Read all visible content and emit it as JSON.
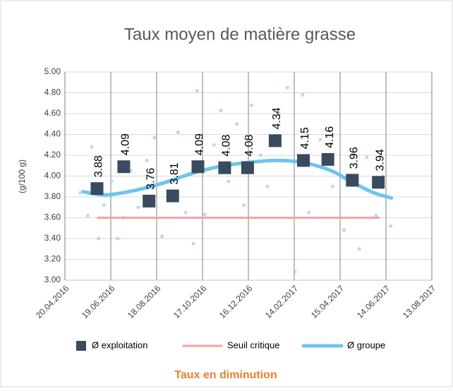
{
  "chart_data": {
    "type": "scatter",
    "title": "Taux moyen de matière grasse",
    "subtitle": "Taux en diminution",
    "y_label": "(g/100 g)",
    "xlim": [
      "2016-04-20",
      "2017-08-13"
    ],
    "xticks": [
      {
        "value": "2016-04-20",
        "label": "20.04.2016"
      },
      {
        "value": "2016-06-19",
        "label": "19.06.2016"
      },
      {
        "value": "2016-08-18",
        "label": "18.08.2016"
      },
      {
        "value": "2016-10-17",
        "label": "17.10.2016"
      },
      {
        "value": "2016-12-16",
        "label": "16.12.2016"
      },
      {
        "value": "2017-02-14",
        "label": "14.02.2017"
      },
      {
        "value": "2017-04-15",
        "label": "15.04.2017"
      },
      {
        "value": "2017-06-14",
        "label": "14.06.2017"
      },
      {
        "value": "2017-08-13",
        "label": "13.08.2017"
      }
    ],
    "ylim": [
      3.0,
      5.0
    ],
    "yticks": [
      {
        "value": 3.0,
        "label": "3.00"
      },
      {
        "value": 3.2,
        "label": "3.20"
      },
      {
        "value": 3.4,
        "label": "3.40"
      },
      {
        "value": 3.6,
        "label": "3.60"
      },
      {
        "value": 3.8,
        "label": "3.80"
      },
      {
        "value": 4.0,
        "label": "4.00"
      },
      {
        "value": 4.2,
        "label": "4.20"
      },
      {
        "value": 4.4,
        "label": "4.40"
      },
      {
        "value": 4.6,
        "label": "4.60"
      },
      {
        "value": 4.8,
        "label": "4.80"
      },
      {
        "value": 5.0,
        "label": "5.00"
      }
    ],
    "grid": true,
    "points": {
      "color": "#9dd5f3",
      "x": [
        "2016-05-10",
        "2016-05-20",
        "2016-05-25",
        "2016-06-03",
        "2016-06-10",
        "2016-06-20",
        "2016-06-28",
        "2016-07-05",
        "2016-07-15",
        "2016-07-25",
        "2016-08-05",
        "2016-08-15",
        "2016-08-25",
        "2016-09-05",
        "2016-09-15",
        "2016-09-25",
        "2016-10-05",
        "2016-10-10",
        "2016-10-20",
        "2016-11-01",
        "2016-11-10",
        "2016-11-20",
        "2016-12-01",
        "2016-12-10",
        "2016-12-20",
        "2017-01-01",
        "2017-01-10",
        "2017-01-25",
        "2017-02-05",
        "2017-02-15",
        "2017-02-25",
        "2017-03-05",
        "2017-03-20",
        "2017-04-05",
        "2017-04-20",
        "2017-05-01",
        "2017-05-10",
        "2017-05-20",
        "2017-06-01",
        "2017-06-10",
        "2017-06-20"
      ],
      "values": [
        3.84,
        3.62,
        4.28,
        3.4,
        3.72,
        3.95,
        3.4,
        3.6,
        4.05,
        3.7,
        4.15,
        4.37,
        3.42,
        3.95,
        4.42,
        3.65,
        3.35,
        4.82,
        3.63,
        4.3,
        4.63,
        3.95,
        4.5,
        3.72,
        4.68,
        4.2,
        3.9,
        4.6,
        4.85,
        3.08,
        4.78,
        3.65,
        4.35,
        3.9,
        3.48,
        4.2,
        3.3,
        4.18,
        3.62,
        4.0,
        3.52
      ]
    },
    "series": [
      {
        "name": "Ø exploitation",
        "type": "square",
        "color": "#3a4a5f",
        "x": [
          "2016-06-01",
          "2016-07-06",
          "2016-08-08",
          "2016-09-08",
          "2016-10-11",
          "2016-11-15",
          "2016-12-15",
          "2017-01-20",
          "2017-02-26",
          "2017-03-30",
          "2017-05-01",
          "2017-06-04"
        ],
        "values": [
          3.88,
          4.09,
          3.76,
          3.81,
          4.09,
          4.08,
          4.08,
          4.34,
          4.15,
          4.16,
          3.96,
          3.94
        ]
      },
      {
        "name": "Seuil critique",
        "type": "line",
        "color": "#f4a3a5",
        "x": [
          "2016-06-01",
          "2017-06-06"
        ],
        "values": [
          3.6,
          3.6
        ]
      },
      {
        "name": "Ø groupe",
        "type": "spline",
        "color": "#6cc5ef",
        "x": [
          "2016-05-14",
          "2016-06-12",
          "2016-07-19",
          "2016-08-25",
          "2016-10-01",
          "2016-11-07",
          "2016-12-14",
          "2017-01-20",
          "2017-02-26",
          "2017-04-04",
          "2017-05-01",
          "2017-05-29",
          "2017-06-21"
        ],
        "values": [
          3.85,
          3.82,
          3.86,
          3.93,
          4.02,
          4.09,
          4.13,
          4.15,
          4.13,
          4.05,
          3.94,
          3.84,
          3.79
        ]
      }
    ]
  }
}
